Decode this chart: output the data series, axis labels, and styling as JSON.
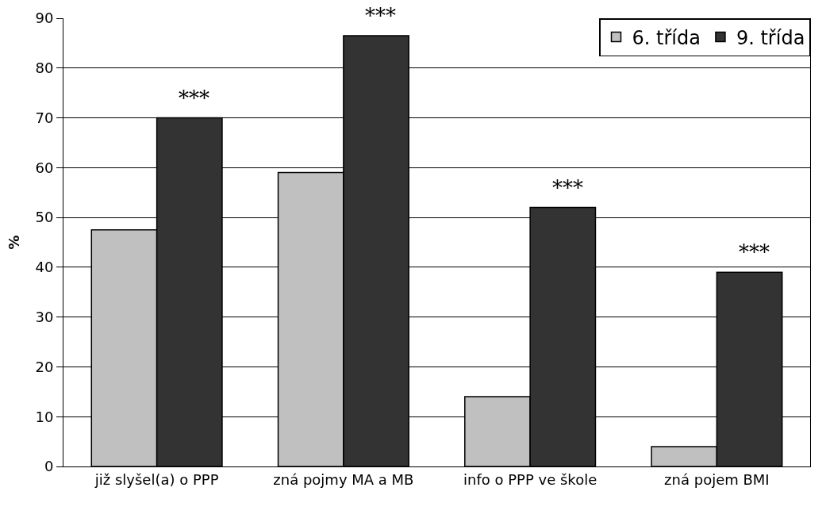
{
  "chart_data": {
    "type": "bar",
    "ylabel": "%",
    "categories": [
      "již slyšel(a) o PPP",
      "zná pojmy MA a MB",
      "info o PPP ve škole",
      "zná pojem BMI"
    ],
    "series": [
      {
        "name": "6. třída",
        "color": "#c0c0c0",
        "values": [
          47.5,
          59,
          14,
          4
        ]
      },
      {
        "name": "9. třída",
        "color": "#333333",
        "values": [
          70,
          86.5,
          52,
          39
        ]
      }
    ],
    "ylim": [
      0,
      90
    ],
    "yticks": [
      0,
      10,
      20,
      30,
      40,
      50,
      60,
      70,
      80,
      90
    ],
    "grid": "y",
    "legend": "top right",
    "annotations": [
      {
        "text": "***",
        "x": "již slyšel(a) o PPP",
        "y": 70
      },
      {
        "text": "***",
        "x": "zná pojmy MA a MB",
        "y": 86.5
      },
      {
        "text": "***",
        "x": "info o PPP ve škole",
        "y": 52
      },
      {
        "text": "***",
        "x": "zná pojem BMI",
        "y": 39
      }
    ]
  }
}
